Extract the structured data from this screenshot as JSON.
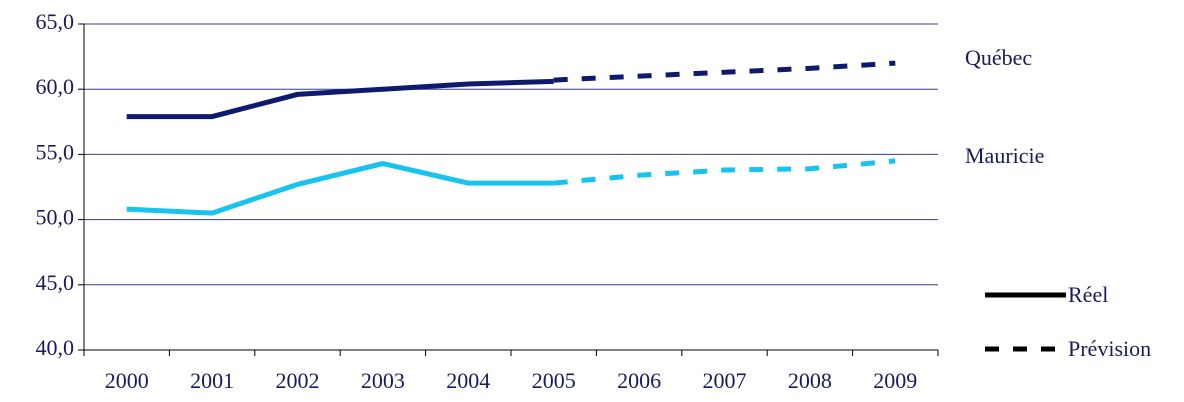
{
  "chart_data": {
    "type": "line",
    "categories": [
      "2000",
      "2001",
      "2002",
      "2003",
      "2004",
      "2005",
      "2006",
      "2007",
      "2008",
      "2009"
    ],
    "series": [
      {
        "name": "Québec",
        "color": "#0d1a6e",
        "values": [
          57.9,
          57.9,
          59.6,
          60.0,
          60.4,
          60.6,
          null,
          null,
          null,
          null
        ],
        "forecast": [
          null,
          null,
          null,
          null,
          null,
          60.7,
          61.0,
          61.3,
          61.6,
          62.0
        ]
      },
      {
        "name": "Mauricie",
        "color": "#19c3f0",
        "values": [
          50.8,
          50.5,
          52.7,
          54.3,
          52.8,
          52.8,
          null,
          null,
          null,
          null
        ],
        "forecast": [
          null,
          null,
          null,
          null,
          null,
          52.8,
          53.4,
          53.8,
          53.9,
          54.5
        ]
      }
    ],
    "line_styles": [
      {
        "label": "Réel",
        "dash": false
      },
      {
        "label": "Prévision",
        "dash": true
      }
    ],
    "ylim": [
      40,
      65
    ],
    "yticks": [
      {
        "value": 40,
        "label": "40,0"
      },
      {
        "value": 45,
        "label": "45,0"
      },
      {
        "value": 50,
        "label": "50,0"
      },
      {
        "value": 55,
        "label": "55,0"
      },
      {
        "value": 60,
        "label": "60,0"
      },
      {
        "value": 65,
        "label": "65,0"
      }
    ],
    "grid": true
  }
}
